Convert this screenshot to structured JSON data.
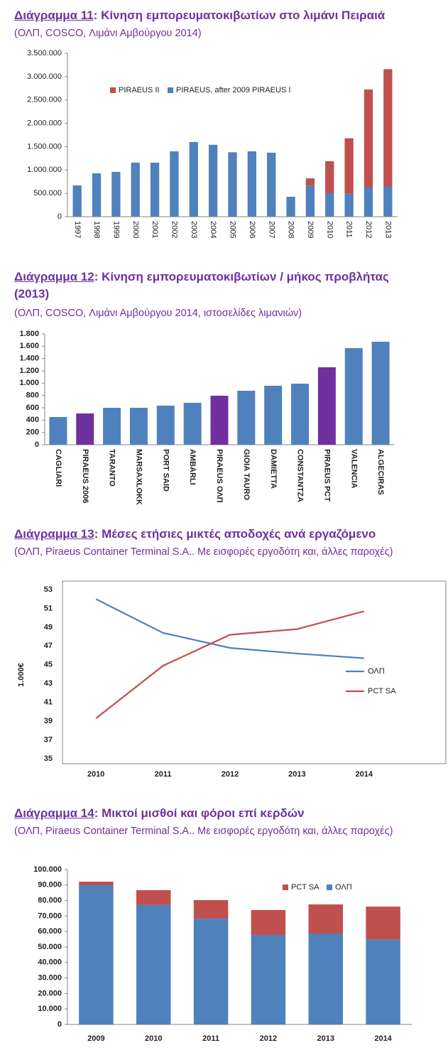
{
  "chart_data": [
    {
      "type": "stacked_bar",
      "title": "Διάγραμμα 11: Κίνηση εμπορευματοκιβωτίων στο λιμάνι Πειραιά",
      "subtitle": "(ΟΛΠ, COSCO, Λιμάνι Αμβούργου 2014)",
      "categories": [
        "1997",
        "1998",
        "1999",
        "2000",
        "2001",
        "2002",
        "2003",
        "2004",
        "2005",
        "2006",
        "2007",
        "2008",
        "2009",
        "2010",
        "2011",
        "2012",
        "2013"
      ],
      "series": [
        {
          "name": "PIRAEUS II",
          "color": "#c0504d",
          "values": [
            0,
            0,
            0,
            0,
            0,
            0,
            0,
            0,
            0,
            0,
            0,
            0,
            157000,
            686000,
            1190000,
            2100000,
            2520000
          ]
        },
        {
          "name": "PIRAEUS, after 2009 PIRAEUS I",
          "color": "#4f81bd",
          "values": [
            670000,
            928000,
            959000,
            1157000,
            1157000,
            1400000,
            1600000,
            1540000,
            1380000,
            1400000,
            1370000,
            426000,
            665000,
            502000,
            490000,
            624000,
            640000
          ]
        }
      ],
      "ylim": [
        0,
        3500000
      ],
      "yticks": [
        0,
        {
          "value": 500000,
          "label": "500.000"
        },
        {
          "value": 1000000,
          "label": "1.000.000"
        },
        {
          "value": 1500000,
          "label": "1.500.000"
        },
        {
          "value": 2000000,
          "label": "2.000.000"
        },
        {
          "value": 2500000,
          "label": "2.500.000"
        },
        {
          "value": 3000000,
          "label": "3.000.000"
        },
        {
          "value": 3500000,
          "label": "3.500.000"
        }
      ],
      "grid": false
    },
    {
      "type": "bar",
      "title": "Διάγραμμα 12: Κίνηση εμπορευματοκιβωτίων  /  μήκος προβλήτας (2013)",
      "subtitle": "(ΟΛΠ, COSCO, Λιμάνι Αμβούργου 2014, ιστοσελίδες λιμανιών)",
      "categories": [
        "CAGLIARI",
        "PIRAEUS 2006",
        "TARANTO",
        "MARSAXLOKK",
        "PORT SAID",
        "AMBARLI",
        "PIRAEUS ΟΛΠ",
        "GIOIA TAURO",
        "DAMIETTA",
        "CONSTANTZA",
        "PIRAEUS PCT",
        "VALENCIA",
        "ALGECIRAS"
      ],
      "values": [
        450,
        508,
        600,
        600,
        635,
        681,
        796,
        877,
        958,
        992,
        1258,
        1569,
        1673
      ],
      "colors": [
        "#4f81bd",
        "#7030a0",
        "#4f81bd",
        "#4f81bd",
        "#4f81bd",
        "#4f81bd",
        "#7030a0",
        "#4f81bd",
        "#4f81bd",
        "#4f81bd",
        "#7030a0",
        "#4f81bd",
        "#4f81bd"
      ],
      "label_colors": [
        "#1f1f1f",
        "#7030a0",
        "#1f1f1f",
        "#1f1f1f",
        "#1f1f1f",
        "#1f1f1f",
        "#7030a0",
        "#1f1f1f",
        "#1f1f1f",
        "#1f1f1f",
        "#7030a0",
        "#1f1f1f",
        "#1f1f1f"
      ],
      "ylim": [
        0,
        1800
      ],
      "yticks": [
        0,
        200,
        400,
        600,
        800,
        {
          "value": 1000,
          "label": "1.000"
        },
        {
          "value": 1200,
          "label": "1.200"
        },
        {
          "value": 1400,
          "label": "1.400"
        },
        {
          "value": 1600,
          "label": "1.600"
        },
        {
          "value": 1800,
          "label": "1.800"
        }
      ],
      "grid": false
    },
    {
      "type": "line",
      "title": "Διάγραμμα 13: Μέσες ετήσιες μικτές αποδοχές ανά εργαζόμενο",
      "subtitle": "(ΟΛΠ, Piraeus Container Terminal S.A.. Με εισφορές εργοδότη και, άλλες παροχές)",
      "y_label": "1.000€",
      "categories": [
        "2010",
        "2011",
        "2012",
        "2013",
        "2014"
      ],
      "series": [
        {
          "name": "ΟΛΠ",
          "color": "#4f81bd",
          "values": [
            52.0,
            48.4,
            46.8,
            46.2,
            45.7
          ]
        },
        {
          "name": "PCT SA",
          "color": "#c0504d",
          "values": [
            39.3,
            44.9,
            48.2,
            48.8,
            50.7
          ]
        }
      ],
      "ylim": [
        35,
        53
      ],
      "yticks": [
        35,
        37,
        39,
        41,
        43,
        45,
        47,
        49,
        51,
        53
      ],
      "grid": false
    },
    {
      "type": "stacked_bar",
      "title": "Διάγραμμα 14: Μικτοί μισθοί και φόροι επί κερδών",
      "subtitle": "(ΟΛΠ, Piraeus Container Terminal S.A.. Με εισφορές εργοδότη και, άλλες παροχές)",
      "categories": [
        "2009",
        "2010",
        "2011",
        "2012",
        "2013",
        "2014"
      ],
      "series": [
        {
          "name": "PCT SA",
          "color": "#c0504d",
          "values": [
            2300,
            9600,
            12000,
            16100,
            18800,
            21100
          ]
        },
        {
          "name": "ΟΛΠ",
          "color": "#4f81bd",
          "values": [
            89900,
            77100,
            68300,
            57800,
            58700,
            55000
          ]
        }
      ],
      "ylim": [
        0,
        100000
      ],
      "yticks": [
        0,
        {
          "value": 10000,
          "label": "10.000"
        },
        {
          "value": 20000,
          "label": "20.000"
        },
        {
          "value": 30000,
          "label": "30.000"
        },
        {
          "value": 40000,
          "label": "40.000"
        },
        {
          "value": 50000,
          "label": "50.000"
        },
        {
          "value": 60000,
          "label": "60.000"
        },
        {
          "value": 70000,
          "label": "70.000"
        },
        {
          "value": 80000,
          "label": "80.000"
        },
        {
          "value": 90000,
          "label": "90.000"
        },
        {
          "value": 100000,
          "label": "100.000"
        }
      ],
      "grid": false
    }
  ]
}
